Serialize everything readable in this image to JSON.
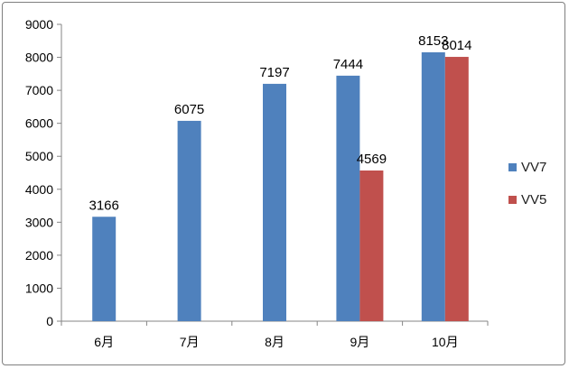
{
  "chart_data": {
    "type": "bar",
    "categories": [
      "6月",
      "7月",
      "8月",
      "9月",
      "10月"
    ],
    "series": [
      {
        "name": "VV7",
        "color": "#4f81bd",
        "values": [
          3166,
          6075,
          7197,
          7444,
          8153
        ]
      },
      {
        "name": "VV5",
        "color": "#c0504d",
        "values": [
          null,
          null,
          null,
          4569,
          8014
        ]
      }
    ],
    "title": "",
    "xlabel": "",
    "ylabel": "",
    "ylim": [
      0,
      9000
    ],
    "yticks": [
      0,
      1000,
      2000,
      3000,
      4000,
      5000,
      6000,
      7000,
      8000,
      9000
    ],
    "grid": false,
    "legend_position": "right",
    "data_labels": true
  }
}
